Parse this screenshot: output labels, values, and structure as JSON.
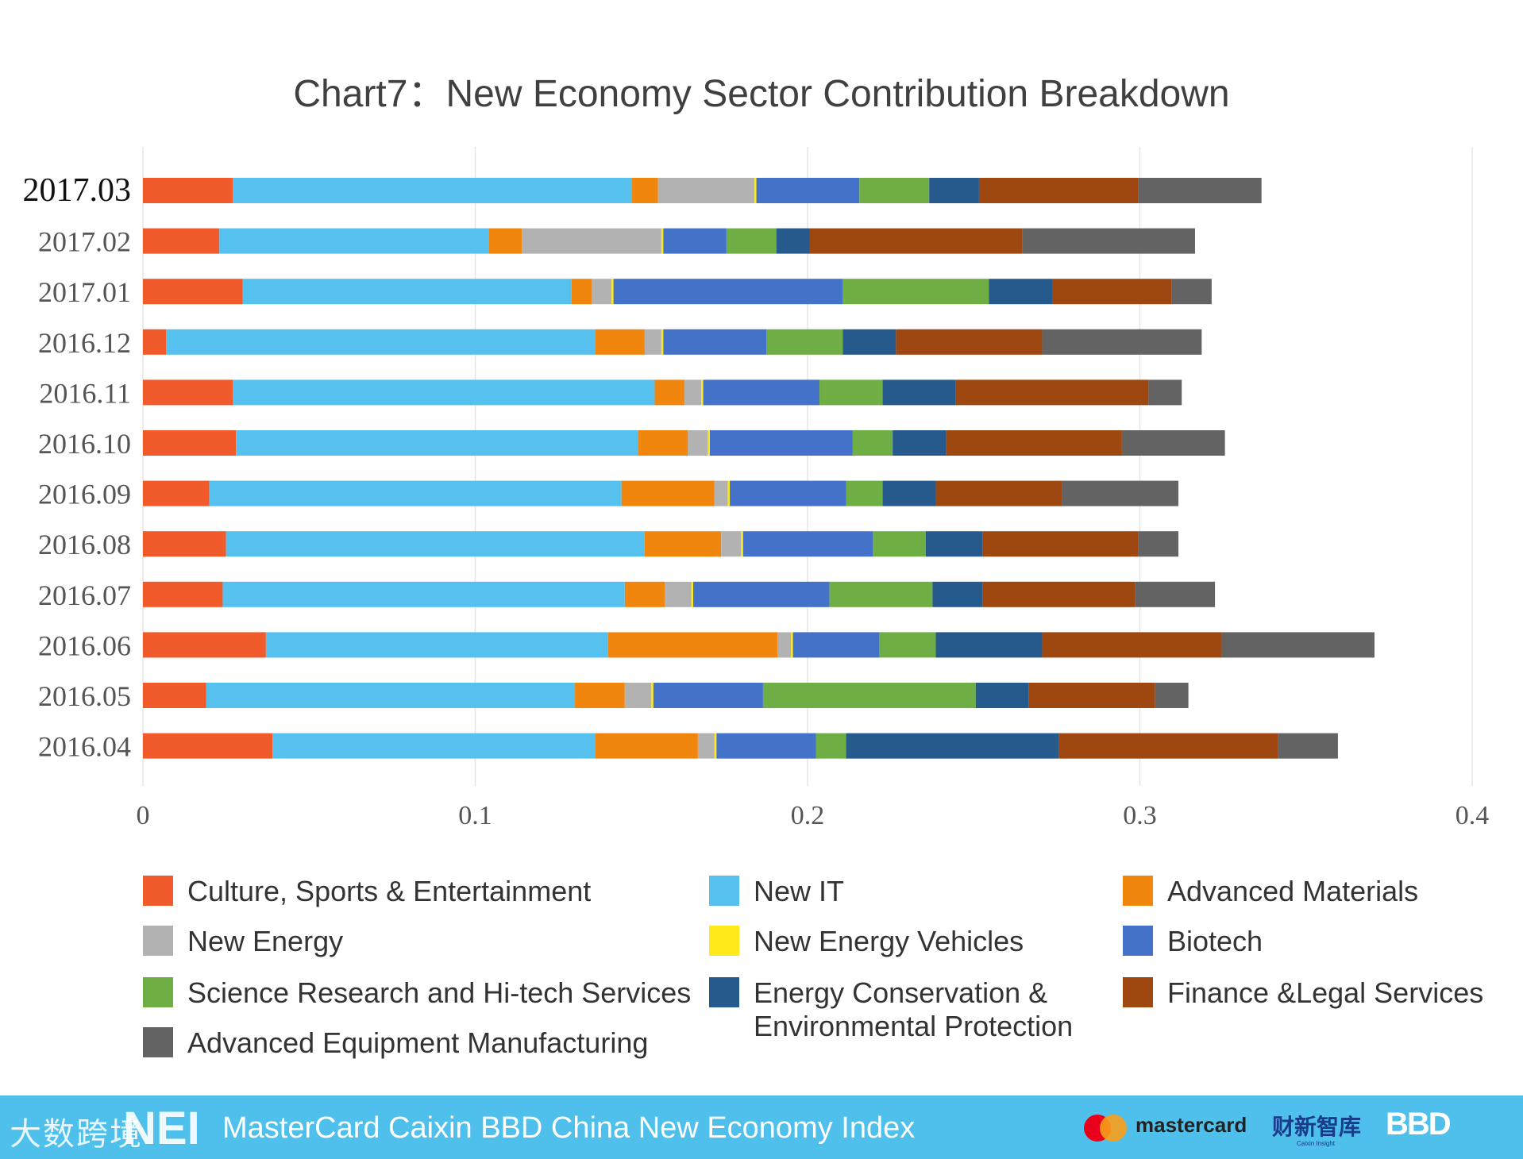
{
  "chart_data": {
    "type": "bar",
    "orientation": "horizontal",
    "stacked": true,
    "title": "Chart7：New Economy Sector Contribution Breakdown",
    "categories": [
      "2017.03",
      "2017.02",
      "2017.01",
      "2016.12",
      "2016.11",
      "2016.10",
      "2016.09",
      "2016.08",
      "2016.07",
      "2016.06",
      "2016.05",
      "2016.04"
    ],
    "xlim": [
      0,
      0.4
    ],
    "xticks": [
      "0",
      "0.1",
      "0.2",
      "0.3",
      "0.4"
    ],
    "grid": true,
    "legend_position": "bottom",
    "series": [
      {
        "name": "Culture, Sports & Entertainment",
        "color": "#f15a2a",
        "values": [
          0.027,
          0.023,
          0.03,
          0.007,
          0.027,
          0.028,
          0.02,
          0.025,
          0.024,
          0.037,
          0.019,
          0.039
        ]
      },
      {
        "name": "New IT",
        "color": "#56c1ef",
        "values": [
          0.12,
          0.081,
          0.099,
          0.129,
          0.127,
          0.121,
          0.124,
          0.126,
          0.121,
          0.103,
          0.111,
          0.097
        ]
      },
      {
        "name": "Advanced Materials",
        "color": "#f0860e",
        "values": [
          0.008,
          0.01,
          0.006,
          0.015,
          0.009,
          0.015,
          0.028,
          0.023,
          0.012,
          0.051,
          0.015,
          0.031
        ]
      },
      {
        "name": "New Energy",
        "color": "#b2b2b2",
        "values": [
          0.029,
          0.042,
          0.006,
          0.005,
          0.005,
          0.006,
          0.004,
          0.006,
          0.008,
          0.004,
          0.008,
          0.005
        ]
      },
      {
        "name": "New Energy Vehicles",
        "color": "#fee91a",
        "values": [
          0.0006,
          0.0006,
          0.0006,
          0.0006,
          0.0006,
          0.0006,
          0.0006,
          0.0006,
          0.0006,
          0.0006,
          0.0006,
          0.0006
        ]
      },
      {
        "name": "Biotech",
        "color": "#4472c8",
        "values": [
          0.031,
          0.019,
          0.069,
          0.031,
          0.035,
          0.043,
          0.035,
          0.039,
          0.041,
          0.026,
          0.033,
          0.03
        ]
      },
      {
        "name": "Science Research and Hi-tech Services",
        "color": "#6fae45",
        "values": [
          0.021,
          0.015,
          0.044,
          0.023,
          0.019,
          0.012,
          0.011,
          0.016,
          0.031,
          0.017,
          0.064,
          0.009
        ]
      },
      {
        "name": "Energy Conservation & Environmental Protection",
        "color": "#275a8c",
        "values": [
          0.015,
          0.01,
          0.019,
          0.016,
          0.022,
          0.016,
          0.016,
          0.017,
          0.015,
          0.032,
          0.016,
          0.064
        ]
      },
      {
        "name": "Finance &Legal Services",
        "color": "#9e4710",
        "values": [
          0.048,
          0.064,
          0.036,
          0.044,
          0.058,
          0.053,
          0.038,
          0.047,
          0.046,
          0.054,
          0.038,
          0.066
        ]
      },
      {
        "name": "Advanced Equipment Manufacturing",
        "color": "#636363",
        "values": [
          0.037,
          0.052,
          0.012,
          0.048,
          0.01,
          0.031,
          0.035,
          0.012,
          0.024,
          0.046,
          0.01,
          0.018
        ]
      }
    ]
  },
  "legend": {
    "items": [
      {
        "label": "Culture, Sports & Entertainment",
        "color": "#f15a2a"
      },
      {
        "label": "New IT",
        "color": "#56c1ef"
      },
      {
        "label": "Advanced Materials",
        "color": "#f0860e"
      },
      {
        "label": "New Energy",
        "color": "#b2b2b2"
      },
      {
        "label": "New Energy Vehicles",
        "color": "#fee91a"
      },
      {
        "label": "Biotech",
        "color": "#4472c8"
      },
      {
        "label": "Science Research and Hi-tech Services",
        "color": "#6fae45"
      },
      {
        "label": "Energy Conservation &\nEnvironmental Protection",
        "color": "#275a8c"
      },
      {
        "label": "Finance &Legal Services",
        "color": "#9e4710"
      },
      {
        "label": "Advanced Equipment Manufacturing",
        "color": "#636363"
      }
    ]
  },
  "footer": {
    "left_logo": "大数跨境",
    "nei_logo": "NEI",
    "title": "MasterCard Caixin BBD China New Economy Index",
    "mastercard": "mastercard",
    "caixin": "财新智库",
    "caixin_sub": "Caixin Insight",
    "bbd": "BBD",
    "bg_color": "#4fbfeb"
  }
}
